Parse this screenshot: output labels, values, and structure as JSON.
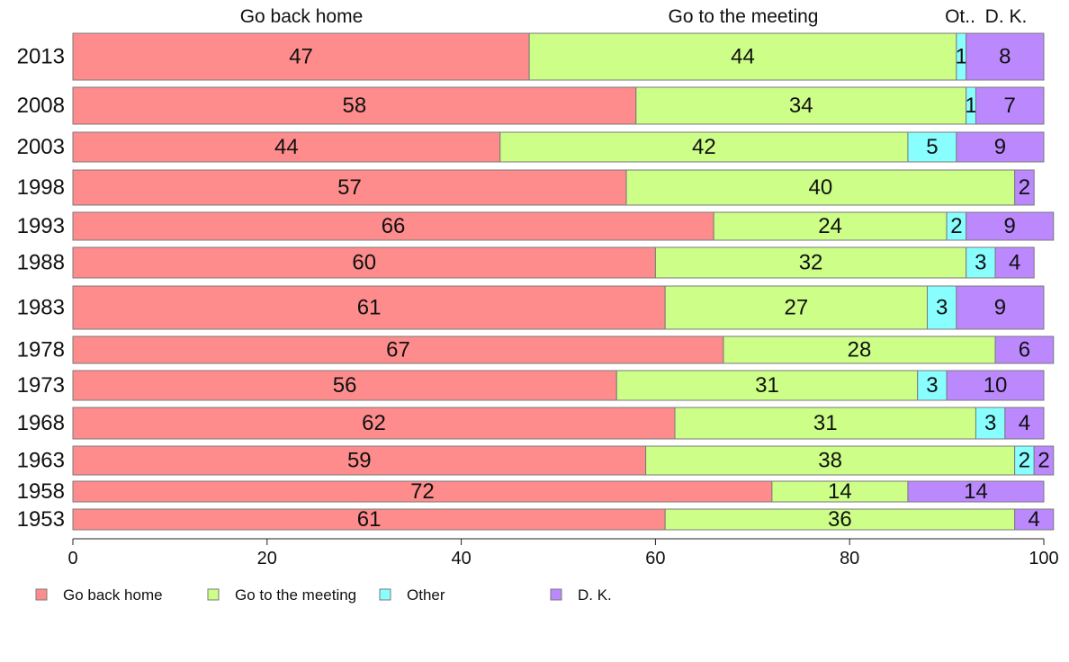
{
  "chart_data": {
    "type": "bar",
    "orientation": "horizontal",
    "stacked": true,
    "categories": [
      "2013",
      "2008",
      "2003",
      "1998",
      "1993",
      "1988",
      "1983",
      "1978",
      "1973",
      "1968",
      "1963",
      "1958",
      "1953"
    ],
    "series": [
      {
        "name": "Go back home",
        "color": "#fe8c8c",
        "values": [
          47,
          58,
          44,
          57,
          66,
          60,
          61,
          67,
          56,
          62,
          59,
          72,
          61
        ]
      },
      {
        "name": "Go to the meeting",
        "color": "#ccfe88",
        "values": [
          44,
          34,
          42,
          40,
          24,
          32,
          27,
          28,
          31,
          31,
          38,
          14,
          36
        ]
      },
      {
        "name": "Other",
        "color": "#88feff",
        "values": [
          1,
          1,
          5,
          0,
          2,
          3,
          3,
          0,
          3,
          3,
          2,
          0,
          0
        ]
      },
      {
        "name": "D. K.",
        "color": "#bb88fe",
        "values": [
          8,
          7,
          9,
          2,
          9,
          4,
          9,
          6,
          10,
          4,
          2,
          14,
          4
        ]
      }
    ],
    "column_labels": [
      "Go back home",
      "Go to the meeting",
      "Ot..",
      "D. K."
    ],
    "x_ticks": [
      "0",
      "20",
      "40",
      "60",
      "80",
      "100"
    ],
    "xlim": [
      0,
      100
    ],
    "grid": false,
    "legend_position": "bottom-left"
  }
}
